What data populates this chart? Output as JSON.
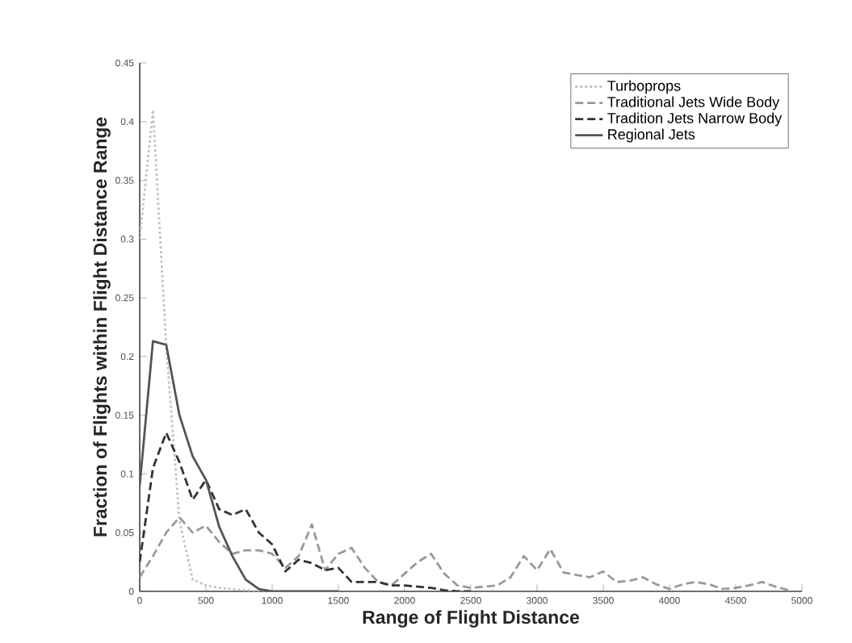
{
  "chart_data": {
    "type": "line",
    "xlabel": "Range of Flight Distance",
    "ylabel": "Fraction of Flights within Flight Distance Range",
    "xlim": [
      0,
      5000
    ],
    "ylim": [
      0,
      0.45
    ],
    "xticks": [
      0,
      500,
      1000,
      1500,
      2000,
      2500,
      3000,
      3500,
      4000,
      4500,
      5000
    ],
    "yticks": [
      0,
      0.05,
      0.1,
      0.15,
      0.2,
      0.25,
      0.3,
      0.35,
      0.4,
      0.45
    ],
    "grid": false,
    "legend": "top right",
    "marker": "none",
    "series": [
      {
        "name": "Turboprops",
        "color": "#c4c4c4",
        "line_style": "dotted",
        "x": [
          0,
          100,
          200,
          300,
          400,
          500,
          600,
          700,
          800,
          900,
          1000
        ],
        "values": [
          0.3,
          0.41,
          0.21,
          0.06,
          0.01,
          0.005,
          0.003,
          0.002,
          0.001,
          0,
          0
        ]
      },
      {
        "name": "Traditional Jets Wide Body",
        "color": "#999999",
        "line_style": "dashed",
        "x": [
          0,
          100,
          200,
          300,
          400,
          500,
          600,
          700,
          800,
          900,
          1000,
          1100,
          1200,
          1300,
          1400,
          1500,
          1600,
          1700,
          1800,
          1900,
          2000,
          2100,
          2200,
          2300,
          2400,
          2500,
          2600,
          2700,
          2800,
          2900,
          3000,
          3100,
          3200,
          3300,
          3400,
          3500,
          3600,
          3700,
          3800,
          3900,
          4000,
          4100,
          4200,
          4300,
          4400,
          4500,
          4600,
          4700,
          4800,
          4900
        ],
        "values": [
          0.012,
          0.03,
          0.05,
          0.063,
          0.05,
          0.056,
          0.042,
          0.032,
          0.035,
          0.035,
          0.032,
          0.02,
          0.03,
          0.057,
          0.018,
          0.032,
          0.037,
          0.02,
          0.008,
          0.005,
          0.015,
          0.025,
          0.032,
          0.015,
          0.005,
          0.003,
          0.004,
          0.005,
          0.012,
          0.03,
          0.018,
          0.036,
          0.016,
          0.014,
          0.012,
          0.017,
          0.008,
          0.009,
          0.012,
          0.006,
          0.002,
          0.006,
          0.008,
          0.006,
          0.002,
          0.003,
          0.005,
          0.008,
          0.004,
          0.001
        ]
      },
      {
        "name": "Tradition Jets Narrow Body",
        "color": "#333333",
        "line_style": "dashed",
        "x": [
          0,
          100,
          200,
          300,
          400,
          500,
          600,
          700,
          800,
          900,
          1000,
          1100,
          1200,
          1300,
          1400,
          1500,
          1600,
          1700,
          1800,
          1900,
          2000,
          2100,
          2200,
          2300,
          2400,
          2500
        ],
        "values": [
          0.025,
          0.105,
          0.135,
          0.11,
          0.078,
          0.095,
          0.07,
          0.065,
          0.07,
          0.05,
          0.04,
          0.017,
          0.027,
          0.024,
          0.018,
          0.02,
          0.008,
          0.008,
          0.008,
          0.005,
          0.005,
          0.004,
          0.003,
          0.001,
          0,
          0
        ]
      },
      {
        "name": "Regional Jets",
        "color": "#555555",
        "line_style": "solid",
        "x": [
          0,
          100,
          200,
          300,
          400,
          500,
          600,
          700,
          800,
          900,
          1000,
          1100,
          1200,
          1300,
          1400,
          1500
        ],
        "values": [
          0.09,
          0.213,
          0.21,
          0.15,
          0.115,
          0.095,
          0.055,
          0.03,
          0.01,
          0.002,
          0,
          0,
          0,
          0,
          0,
          0
        ]
      }
    ]
  }
}
